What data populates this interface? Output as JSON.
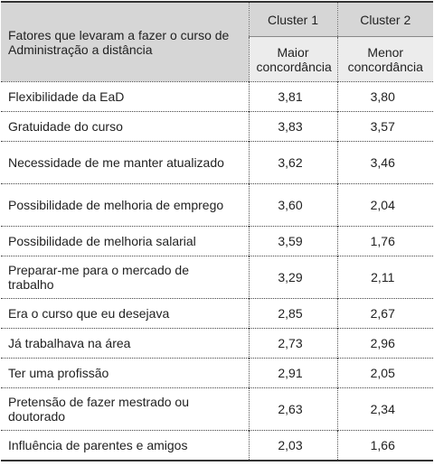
{
  "table": {
    "header": {
      "factor": "Fatores que levaram a fazer o curso de Administração a distância",
      "clusters": [
        "Cluster 1",
        "Cluster 2"
      ],
      "subheaders": [
        "Maior concordância",
        "Menor concordância"
      ]
    },
    "rows": [
      [
        "Flexibilidade da EaD",
        "3,81",
        "3,80"
      ],
      [
        "Gratuidade do curso",
        "3,83",
        "3,57"
      ],
      [
        "Necessidade de me manter atualizado",
        "3,62",
        "3,46"
      ],
      [
        "Possibilidade de melhoria de emprego",
        "3,60",
        "2,04"
      ],
      [
        "Possibilidade de melhoria salarial",
        "3,59",
        "1,76"
      ],
      [
        "Preparar-me para o mercado de trabalho",
        "3,29",
        "2,11"
      ],
      [
        "Era o curso que eu desejava",
        "2,85",
        "2,67"
      ],
      [
        "Já trabalhava na área",
        "2,73",
        "2,96"
      ],
      [
        "Ter uma profissão",
        "2,91",
        "2,05"
      ],
      [
        "Pretensão de fazer mestrado ou doutorado",
        "2,63",
        "2,34"
      ],
      [
        "Influência de parentes e amigos",
        "2,03",
        "1,66"
      ]
    ]
  }
}
